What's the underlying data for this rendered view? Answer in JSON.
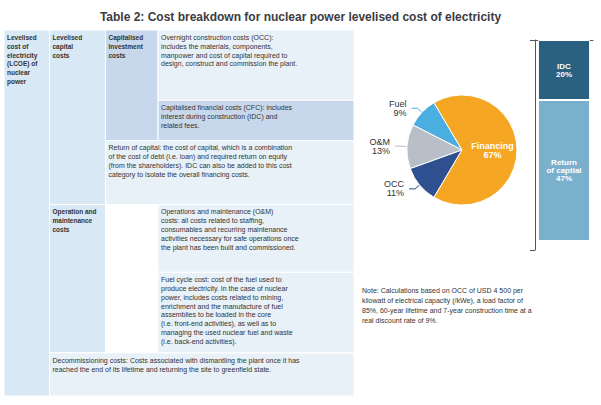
{
  "chart_data": [
    {
      "type": "pie",
      "title": "Table 2: Cost breakdown for nuclear power levelised cost of electricity",
      "categories": [
        "Fuel",
        "O&M",
        "OCC",
        "Financing"
      ],
      "values": [
        9,
        13,
        11,
        67
      ],
      "value_labels": [
        "9%",
        "13%",
        "11%",
        "67%"
      ],
      "colors": [
        "#4aaee0",
        "#b8bfc8",
        "#2e5090",
        "#f5a623"
      ],
      "data_labels": true,
      "annotations": [
        {
          "text": "Levelised\ncost of\nelectricity\n(LCOE) of\nnuclear\npower",
          "color": "#d8e8f4"
        },
        {
          "text": "Levelised\ncapital\ncosts",
          "color": "#d8e8f4"
        },
        {
          "text": "Operation and\nmaintenance\ncosts",
          "color": "#d8e8f4"
        },
        {
          "text": "Decommissioning costs: Costs associated with dismantling the plant once it has\nreached the end of its lifetime and returning the site to greenfield state.",
          "color": "#e8f0f8"
        },
        {
          "text": "Capitalised\nInvestment\ncosts",
          "color": "#c8d8ec"
        },
        {
          "text": "Overnight construction costs (OCC):\nincludes the materials, components,\nmanpower and cost of capital required to\ndesign, construct and commission the plant.",
          "color": "#e8f0f8"
        },
        {
          "text": "Capitalised financial costs (CFC): includes\ninterest during construction (IDC) and\nrelated fees.",
          "color": "#c8d8ec"
        },
        {
          "text": "Return of capital: the cost of capital, which is a combination\nof the cost of debt (i.e. loan) and required return on equity\n(from the shareholders). IDC can also be added to this cost\ncategory to isolate the overall financing costs.",
          "color": "#e8f0f8"
        },
        {
          "text": "Operations and maintenance (O&M)\ncosts: all costs related to staffing,\nconsumables and recurring maintenance\nactivities necessary for safe operations once\nthe plant has been built and commissioned.",
          "color": "#e8f0f8"
        },
        {
          "text": "Fuel cycle cost: cost of the fuel used to\nproduce electricity. In the case of nuclear\npower, includes costs related to mining,\nenrichment and the manufacture of fuel\nassemblies to be loaded in the core\n(i.e. front-end activities), as well as to\nmanaging the used nuclear fuel and waste\n(i.e. back-end activities).",
          "color": "#e8f0f8"
        },
        {
          "text": "Note: Calculations based on OCC of USD 4 500 per\nkilowatt of electrical capacity (/kWe), a load factor of\n85%, 60-year lifetime and 7-year construction time at a\nreal discount rate of 9%."
        }
      ]
    },
    {
      "type": "bar",
      "categories": [
        null
      ],
      "stacked": true,
      "series": [
        {
          "name": "IDC",
          "color": "#2a6080",
          "values": [
            20
          ],
          "value_labels": [
            "20%"
          ]
        },
        {
          "name": "Return\nof captial",
          "color": "#7ab0cc",
          "values": [
            47
          ],
          "value_labels": [
            "47%"
          ]
        }
      ],
      "ylim": [
        0,
        70
      ],
      "yticks": [
        0,
        70
      ],
      "tick_labels": false,
      "grid": false,
      "data_labels": true
    }
  ]
}
